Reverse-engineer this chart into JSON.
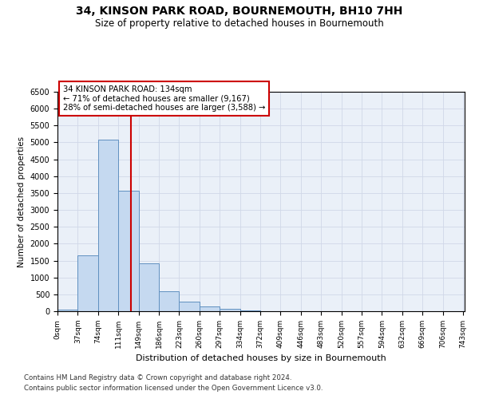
{
  "title1": "34, KINSON PARK ROAD, BOURNEMOUTH, BH10 7HH",
  "title2": "Size of property relative to detached houses in Bournemouth",
  "xlabel": "Distribution of detached houses by size in Bournemouth",
  "ylabel": "Number of detached properties",
  "bin_edges": [
    0,
    37,
    74,
    111,
    148,
    185,
    222,
    259,
    296,
    333,
    370,
    407,
    444,
    481,
    518,
    555,
    592,
    629,
    666,
    703,
    740
  ],
  "bin_labels": [
    "0sqm",
    "37sqm",
    "74sqm",
    "111sqm",
    "149sqm",
    "186sqm",
    "223sqm",
    "260sqm",
    "297sqm",
    "334sqm",
    "372sqm",
    "409sqm",
    "446sqm",
    "483sqm",
    "520sqm",
    "557sqm",
    "594sqm",
    "632sqm",
    "669sqm",
    "706sqm",
    "743sqm"
  ],
  "counts": [
    50,
    1650,
    5080,
    3580,
    1430,
    600,
    290,
    145,
    70,
    20,
    5,
    2,
    1,
    0,
    0,
    0,
    0,
    0,
    0,
    0
  ],
  "bar_facecolor": "#c5d9f0",
  "bar_edgecolor": "#6090c0",
  "property_size": 134,
  "vline_color": "#cc0000",
  "annotation_text": "34 KINSON PARK ROAD: 134sqm\n← 71% of detached houses are smaller (9,167)\n28% of semi-detached houses are larger (3,588) →",
  "annotation_box_color": "#ffffff",
  "annotation_box_edgecolor": "#cc0000",
  "ylim": [
    0,
    6500
  ],
  "yticks": [
    0,
    500,
    1000,
    1500,
    2000,
    2500,
    3000,
    3500,
    4000,
    4500,
    5000,
    5500,
    6000,
    6500
  ],
  "footer1": "Contains HM Land Registry data © Crown copyright and database right 2024.",
  "footer2": "Contains public sector information licensed under the Open Government Licence v3.0.",
  "grid_color": "#d0d8e8",
  "bg_color": "#eaf0f8"
}
